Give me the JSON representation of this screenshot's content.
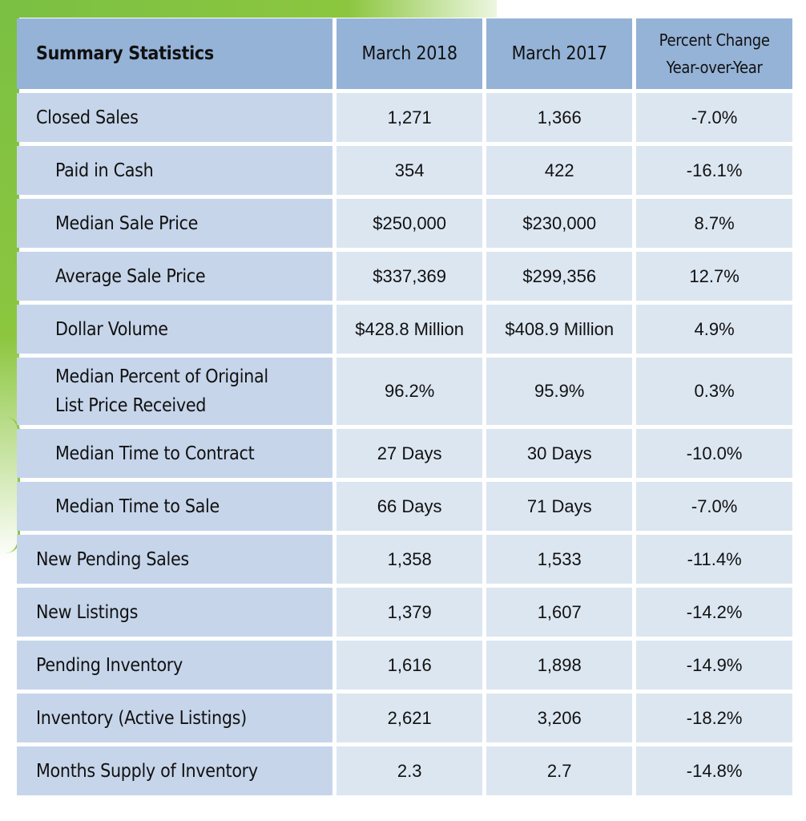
{
  "table": {
    "headers": {
      "label": "Summary Statistics",
      "col1": "March 2018",
      "col2": "March 2017",
      "col3_line1": "Percent Change",
      "col3_line2": "Year-over-Year"
    },
    "rows": [
      {
        "label": "Closed Sales",
        "mar2018": "1,271",
        "mar2017": "1,366",
        "change": "-7.0%"
      },
      {
        "label": "Paid in Cash",
        "mar2018": "354",
        "mar2017": "422",
        "change": "-16.1%"
      },
      {
        "label": "Median Sale Price",
        "mar2018": "$250,000",
        "mar2017": "$230,000",
        "change": "8.7%"
      },
      {
        "label": "Average Sale Price",
        "mar2018": "$337,369",
        "mar2017": "$299,356",
        "change": "12.7%"
      },
      {
        "label": "Dollar Volume",
        "mar2018": "$428.8 Million",
        "mar2017": "$408.9 Million",
        "change": "4.9%"
      },
      {
        "label_line1": "Median Percent of Original",
        "label_line2": "List Price Received",
        "mar2018": "96.2%",
        "mar2017": "95.9%",
        "change": "0.3%"
      },
      {
        "label": "Median Time to Contract",
        "mar2018": "27 Days",
        "mar2017": "30 Days",
        "change": "-10.0%"
      },
      {
        "label": "Median Time to Sale",
        "mar2018": "66 Days",
        "mar2017": "71 Days",
        "change": "-7.0%"
      },
      {
        "label": "New Pending Sales",
        "mar2018": "1,358",
        "mar2017": "1,533",
        "change": "-11.4%"
      },
      {
        "label": "New Listings",
        "mar2018": "1,379",
        "mar2017": "1,607",
        "change": "-14.2%"
      },
      {
        "label": "Pending Inventory",
        "mar2018": "1,616",
        "mar2017": "1,898",
        "change": "-14.9%"
      },
      {
        "label": "Inventory (Active Listings)",
        "mar2018": "2,621",
        "mar2017": "3,206",
        "change": "-18.2%"
      },
      {
        "label": "Months Supply of Inventory",
        "mar2018": "2.3",
        "mar2017": "2.7",
        "change": "-14.8%"
      }
    ]
  },
  "colors": {
    "header_bg": "#95b3d7",
    "label_bg": "#c6d5ea",
    "value_bg": "#dce6f1",
    "accent_green": "#8cc63f"
  }
}
